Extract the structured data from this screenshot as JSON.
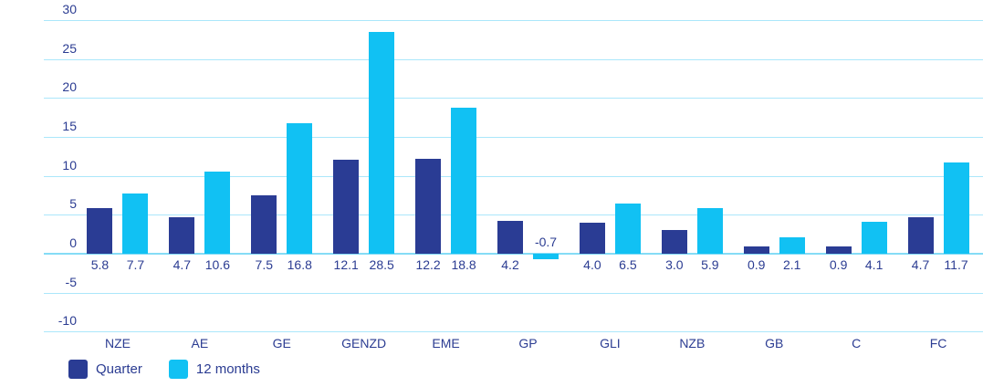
{
  "chart_data": {
    "type": "bar",
    "title": "",
    "xlabel": "",
    "ylabel": "",
    "categories": [
      "NZE",
      "AE",
      "GE",
      "GENZD",
      "EME",
      "GP",
      "GLI",
      "NZB",
      "GB",
      "C",
      "FC"
    ],
    "series": [
      {
        "name": "Quarter",
        "color": "#2a3c94",
        "values": [
          5.8,
          4.7,
          7.5,
          12.1,
          12.2,
          4.2,
          4.0,
          3.0,
          0.9,
          0.9,
          4.7
        ]
      },
      {
        "name": "12 months",
        "color": "#11c1f3",
        "values": [
          7.7,
          10.6,
          16.8,
          28.5,
          18.8,
          -0.7,
          6.5,
          5.9,
          2.1,
          4.1,
          11.7
        ]
      }
    ],
    "value_label_decimals": 1,
    "yticks": [
      30,
      25,
      20,
      15,
      10,
      5,
      0,
      -5,
      -10
    ],
    "ylim": [
      -10,
      30
    ],
    "grid": true,
    "legend_position": "bottom-left"
  },
  "colors": {
    "gridline": "#abe7fb",
    "zero_line": "#85dcf6",
    "label_text": "#2b3c92",
    "background": "#ffffff"
  }
}
